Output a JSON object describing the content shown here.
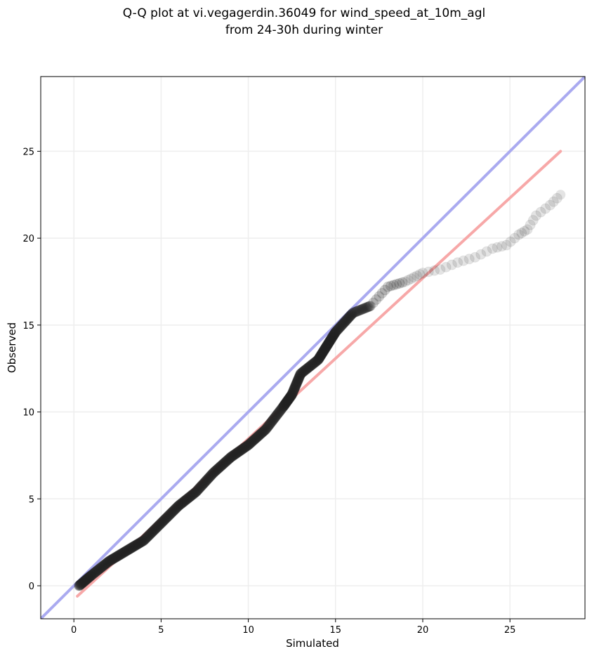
{
  "chart_data": {
    "type": "scatter",
    "title_lines": [
      "Q-Q plot at vi.vegagerdin.36049 for wind_speed_at_10m_agl",
      "from 24-30h during winter"
    ],
    "xlabel": "Simulated",
    "ylabel": "Observed",
    "xlim": [
      -1.9,
      29.3
    ],
    "ylim": [
      -1.9,
      29.3
    ],
    "xticks": [
      0,
      5,
      10,
      15,
      20,
      25
    ],
    "yticks": [
      0,
      5,
      10,
      15,
      20,
      25
    ],
    "grid": true,
    "colors": {
      "identity_line": "#aaaaf0",
      "fit_line": "#f7a8a8",
      "points": "#222222",
      "grid": "#eeeeee"
    },
    "identity_line": {
      "x": [
        -1.9,
        29.3
      ],
      "y": [
        -1.9,
        29.3
      ]
    },
    "fit_line": {
      "x": [
        0.2,
        27.9
      ],
      "y": [
        -0.6,
        25.0
      ]
    },
    "quantile_curve": [
      [
        0.3,
        0.0
      ],
      [
        1.0,
        0.6
      ],
      [
        2.0,
        1.4
      ],
      [
        3.0,
        2.0
      ],
      [
        4.0,
        2.6
      ],
      [
        5.0,
        3.6
      ],
      [
        6.0,
        4.6
      ],
      [
        7.0,
        5.4
      ],
      [
        8.0,
        6.5
      ],
      [
        9.0,
        7.4
      ],
      [
        10.0,
        8.1
      ],
      [
        11.0,
        9.0
      ],
      [
        12.0,
        10.3
      ],
      [
        12.5,
        11.0
      ],
      [
        13.0,
        12.2
      ],
      [
        14.0,
        13.0
      ],
      [
        14.5,
        13.8
      ],
      [
        15.0,
        14.6
      ],
      [
        16.0,
        15.7
      ],
      [
        17.0,
        16.1
      ],
      [
        18.0,
        17.2
      ],
      [
        19.0,
        17.5
      ],
      [
        20.0,
        18.0
      ],
      [
        21.0,
        18.2
      ],
      [
        22.0,
        18.6
      ],
      [
        23.0,
        18.9
      ],
      [
        24.0,
        19.4
      ],
      [
        24.8,
        19.6
      ],
      [
        25.5,
        20.2
      ],
      [
        26.0,
        20.5
      ],
      [
        26.5,
        21.3
      ],
      [
        27.3,
        21.9
      ],
      [
        27.9,
        22.5
      ]
    ]
  }
}
